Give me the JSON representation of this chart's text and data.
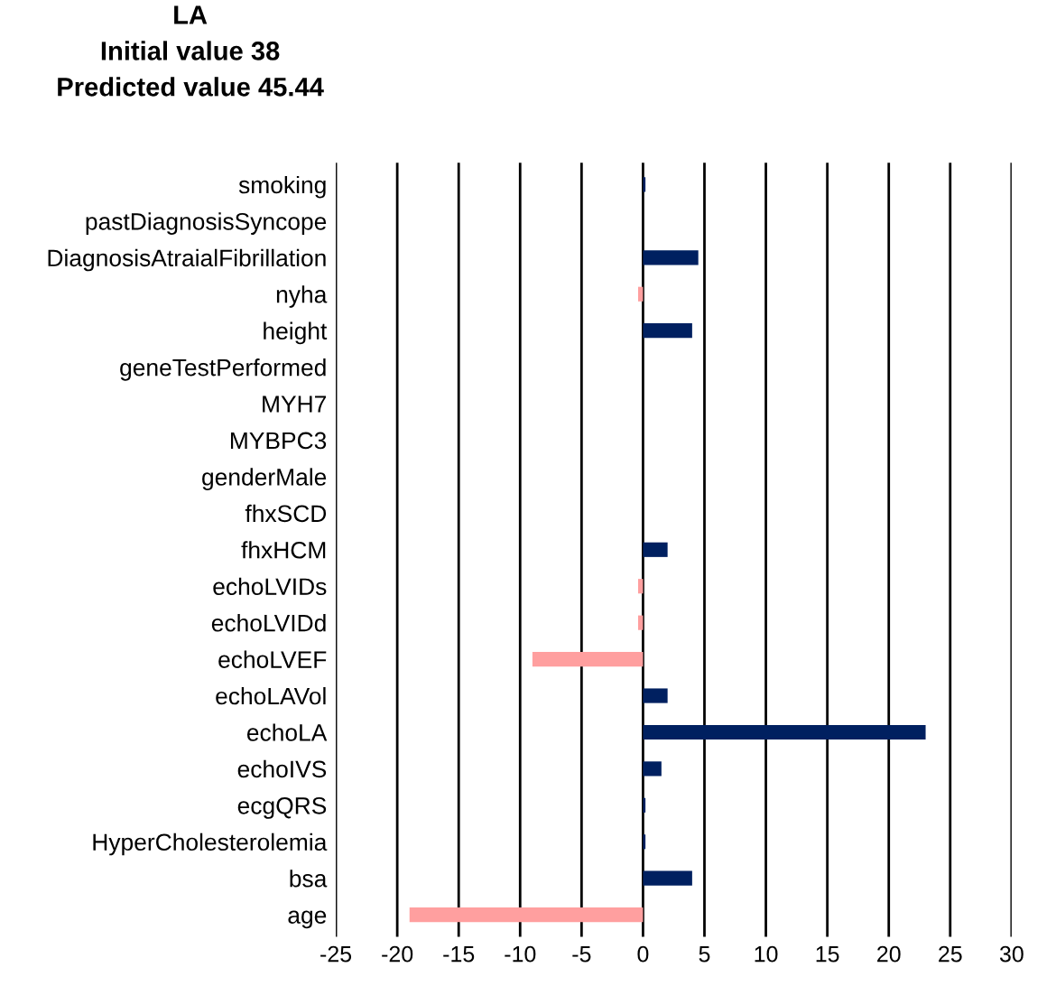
{
  "chart_data": {
    "type": "bar",
    "orientation": "horizontal",
    "title": "LA\nInitial value 38\nPredicted value 45.44",
    "categories": [
      "smoking",
      "pastDiagnosisSyncope",
      "DiagnosisAtraialFibrillation",
      "nyha",
      "height",
      "geneTestPerformed",
      "MYH7",
      "MYBPC3",
      "genderMale",
      "fhxSCD",
      "fhxHCM",
      "echoLVIDs",
      "echoLVIDd",
      "echoLVEF",
      "echoLAVol",
      "echoLA",
      "echoIVS",
      "ecgQRS",
      "HyperCholesterolemia",
      "bsa",
      "age"
    ],
    "values": [
      0.2,
      0,
      4.5,
      -0.4,
      4.0,
      0,
      0,
      0,
      0,
      0,
      2.0,
      -0.4,
      -0.4,
      -9,
      2.0,
      23,
      1.5,
      0.2,
      0.2,
      4.0,
      -19
    ],
    "colors": [
      "#002060",
      "#002060",
      "#002060",
      "#ff9f9f",
      "#002060",
      "#002060",
      "#002060",
      "#002060",
      "#002060",
      "#002060",
      "#002060",
      "#ff9f9f",
      "#ff9f9f",
      "#ff9f9f",
      "#002060",
      "#002060",
      "#002060",
      "#002060",
      "#002060",
      "#002060",
      "#ff9f9f"
    ],
    "xlim": [
      -25,
      30
    ],
    "xticks": [
      -25,
      -20,
      -15,
      -10,
      -5,
      0,
      5,
      10,
      15,
      20,
      25,
      30
    ],
    "grid": "x"
  }
}
